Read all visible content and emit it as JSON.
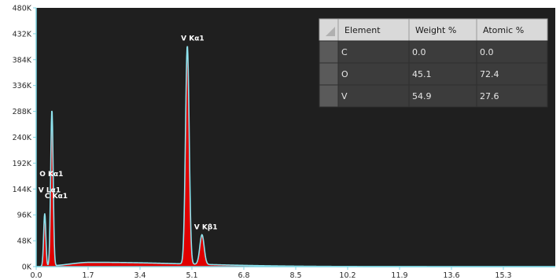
{
  "chart_data": {
    "type": "line",
    "title": "",
    "xlabel": "",
    "ylabel": "",
    "xlim": [
      0.0,
      17.0
    ],
    "ylim": [
      0,
      480000
    ],
    "x_ticks": [
      "0.0",
      "1.7",
      "3.4",
      "5.1",
      "6.8",
      "8.5",
      "10.2",
      "11.9",
      "13.6",
      "15.3"
    ],
    "y_ticks": [
      "0K",
      "48K",
      "96K",
      "144K",
      "192K",
      "240K",
      "288K",
      "336K",
      "384K",
      "432K",
      "480K"
    ],
    "peaks": [
      {
        "label": "C  Kα1",
        "energy": 0.28,
        "counts": 98000,
        "width": 0.035
      },
      {
        "label": "O  Kα1",
        "energy": 0.52,
        "counts": 150000,
        "width": 0.04
      },
      {
        "label": "V  Lα1",
        "energy": 0.51,
        "counts": 142000,
        "width": 0.04
      },
      {
        "label": "V  Kα1",
        "energy": 4.95,
        "counts": 405000,
        "width": 0.06
      },
      {
        "label": "V  Kβ1",
        "energy": 5.43,
        "counts": 55000,
        "width": 0.07
      }
    ],
    "background": {
      "peak_energy": 1.8,
      "peak_counts": 8000
    },
    "grid": false,
    "colors": {
      "spectrum_line": "#8fe3ee",
      "fill": "#e00000",
      "plot_bg": "#1f1f1f",
      "axis": "#7fd4e0"
    }
  },
  "table": {
    "headers": [
      "Element",
      "Weight %",
      "Atomic %"
    ],
    "rows": [
      {
        "element": "C",
        "weight": "0.0",
        "atomic": "0.0"
      },
      {
        "element": "O",
        "weight": "45.1",
        "atomic": "72.4"
      },
      {
        "element": "V",
        "weight": "54.9",
        "atomic": "27.6"
      }
    ]
  }
}
